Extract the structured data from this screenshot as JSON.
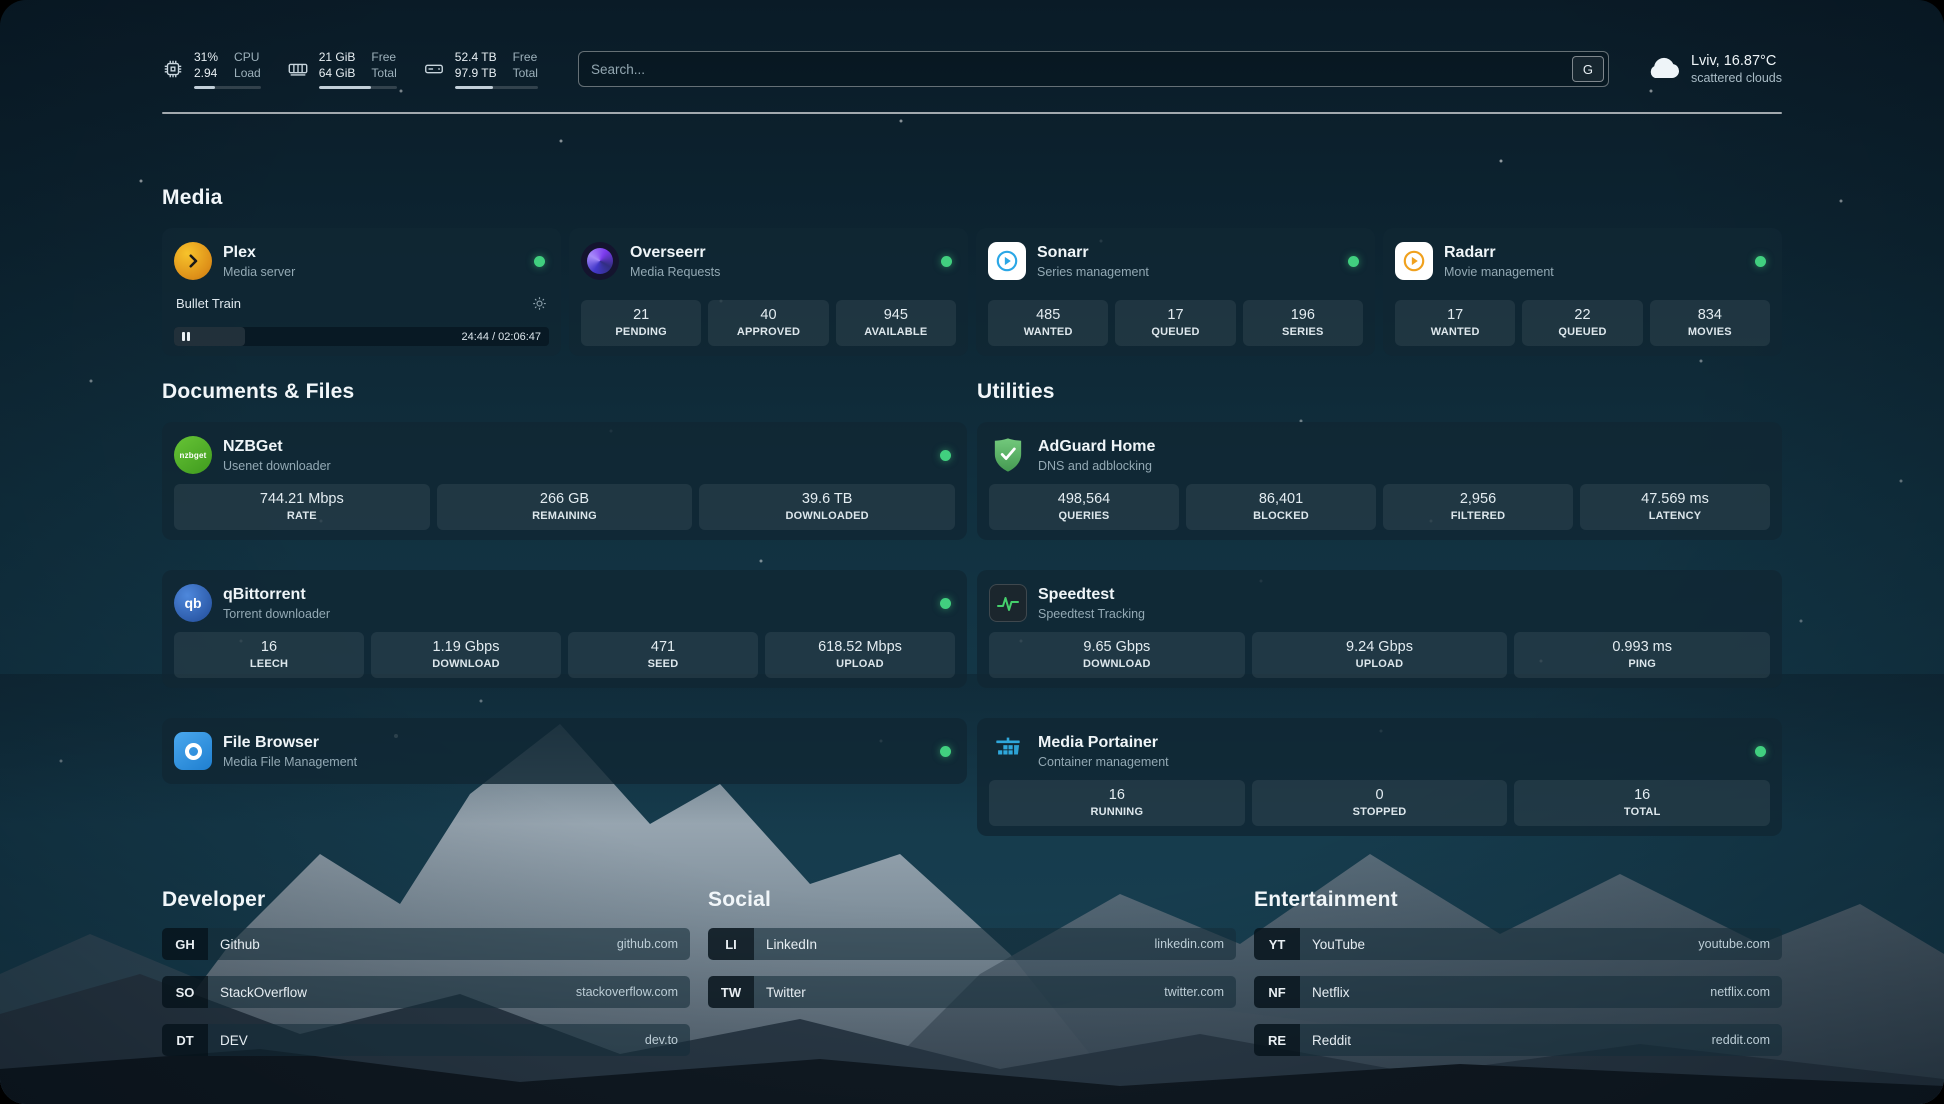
{
  "theme": {
    "status_online": "#41cf7f",
    "accent_plex": "#e8a528",
    "accent_sonarr": "#2ba7e6",
    "accent_radarr": "#f0a11e",
    "accent_overseerr": "#7c5bf1",
    "accent_nzbget": "#55b12f",
    "accent_qbittorrent": "#3a6fc4",
    "accent_filebrowser": "#3b9ce8",
    "accent_adguard": "#56b05e",
    "accent_speedtest": "#45d06c",
    "accent_portainer": "#2fa8dc"
  },
  "header": {
    "cpu": {
      "percent": "31%",
      "load": "2.94",
      "label_line1": "CPU",
      "label_line2": "Load",
      "bar_percent": 31
    },
    "memory": {
      "free": "21 GiB",
      "total": "64 GiB",
      "label_line1": "Free",
      "label_line2": "Total",
      "bar_percent": 67
    },
    "disk": {
      "free": "52.4 TB",
      "total": "97.9 TB",
      "label_line1": "Free",
      "label_line2": "Total",
      "bar_percent": 46
    },
    "search": {
      "placeholder": "Search...",
      "engine_label": "G"
    },
    "weather": {
      "location": "Lviv, 16.87°C",
      "condition": "scattered clouds"
    }
  },
  "sections": {
    "media": {
      "title": "Media",
      "plex": {
        "name": "Plex",
        "subtitle": "Media server",
        "online": true,
        "now_playing": {
          "title": "Bullet Train",
          "time": "24:44 / 02:06:47",
          "progress_percent": 19
        }
      },
      "overseerr": {
        "name": "Overseerr",
        "subtitle": "Media Requests",
        "online": true,
        "stats": [
          {
            "value": "21",
            "label": "PENDING"
          },
          {
            "value": "40",
            "label": "APPROVED"
          },
          {
            "value": "945",
            "label": "AVAILABLE"
          }
        ]
      },
      "sonarr": {
        "name": "Sonarr",
        "subtitle": "Series management",
        "online": true,
        "stats": [
          {
            "value": "485",
            "label": "WANTED"
          },
          {
            "value": "17",
            "label": "QUEUED"
          },
          {
            "value": "196",
            "label": "SERIES"
          }
        ]
      },
      "radarr": {
        "name": "Radarr",
        "subtitle": "Movie management",
        "online": true,
        "stats": [
          {
            "value": "17",
            "label": "WANTED"
          },
          {
            "value": "22",
            "label": "QUEUED"
          },
          {
            "value": "834",
            "label": "MOVIES"
          }
        ]
      }
    },
    "documents": {
      "title": "Documents & Files",
      "nzbget": {
        "name": "NZBGet",
        "subtitle": "Usenet downloader",
        "online": true,
        "stats": [
          {
            "value": "744.21 Mbps",
            "label": "RATE"
          },
          {
            "value": "266 GB",
            "label": "REMAINING"
          },
          {
            "value": "39.6 TB",
            "label": "DOWNLOADED"
          }
        ]
      },
      "qbittorrent": {
        "name": "qBittorrent",
        "subtitle": "Torrent downloader",
        "online": true,
        "stats": [
          {
            "value": "16",
            "label": "LEECH"
          },
          {
            "value": "1.19 Gbps",
            "label": "DOWNLOAD"
          },
          {
            "value": "471",
            "label": "SEED"
          },
          {
            "value": "618.52 Mbps",
            "label": "UPLOAD"
          }
        ]
      },
      "filebrowser": {
        "name": "File Browser",
        "subtitle": "Media File Management",
        "online": true
      }
    },
    "utilities": {
      "title": "Utilities",
      "adguard": {
        "name": "AdGuard Home",
        "subtitle": "DNS and adblocking",
        "stats": [
          {
            "value": "498,564",
            "label": "QUERIES"
          },
          {
            "value": "86,401",
            "label": "BLOCKED"
          },
          {
            "value": "2,956",
            "label": "FILTERED"
          },
          {
            "value": "47.569 ms",
            "label": "LATENCY"
          }
        ]
      },
      "speedtest": {
        "name": "Speedtest",
        "subtitle": "Speedtest Tracking",
        "stats": [
          {
            "value": "9.65 Gbps",
            "label": "DOWNLOAD"
          },
          {
            "value": "9.24 Gbps",
            "label": "UPLOAD"
          },
          {
            "value": "0.993 ms",
            "label": "PING"
          }
        ]
      },
      "portainer": {
        "name": "Media Portainer",
        "subtitle": "Container management",
        "online": true,
        "stats": [
          {
            "value": "16",
            "label": "RUNNING"
          },
          {
            "value": "0",
            "label": "STOPPED"
          },
          {
            "value": "16",
            "label": "TOTAL"
          }
        ]
      }
    },
    "bookmarks": {
      "developer": {
        "title": "Developer",
        "items": [
          {
            "abbr": "GH",
            "name": "Github",
            "url": "github.com"
          },
          {
            "abbr": "SO",
            "name": "StackOverflow",
            "url": "stackoverflow.com"
          },
          {
            "abbr": "DT",
            "name": "DEV",
            "url": "dev.to"
          }
        ]
      },
      "social": {
        "title": "Social",
        "items": [
          {
            "abbr": "LI",
            "name": "LinkedIn",
            "url": "linkedin.com"
          },
          {
            "abbr": "TW",
            "name": "Twitter",
            "url": "twitter.com"
          }
        ]
      },
      "entertainment": {
        "title": "Entertainment",
        "items": [
          {
            "abbr": "YT",
            "name": "YouTube",
            "url": "youtube.com"
          },
          {
            "abbr": "NF",
            "name": "Netflix",
            "url": "netflix.com"
          },
          {
            "abbr": "RE",
            "name": "Reddit",
            "url": "reddit.com"
          }
        ]
      }
    }
  },
  "icons": {
    "nzbget_text": "nzbget",
    "qbittorrent_text": "qb"
  }
}
